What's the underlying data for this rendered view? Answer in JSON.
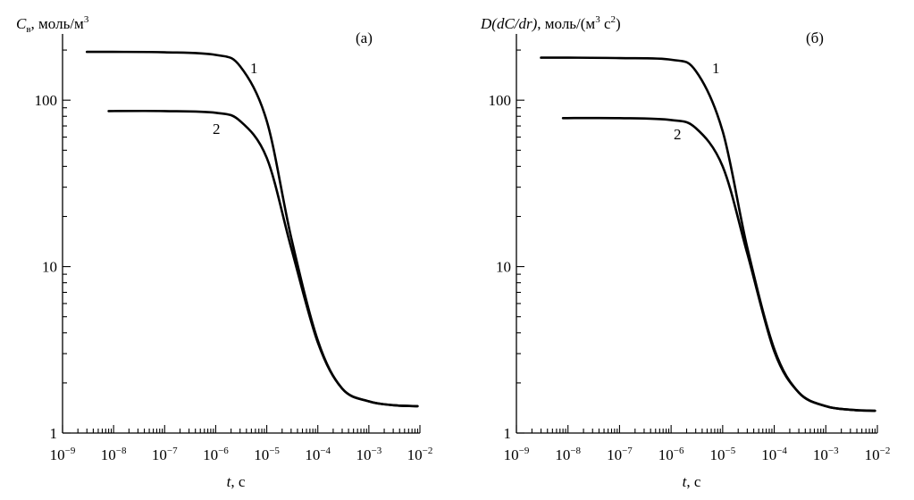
{
  "chart_data": [
    {
      "type": "line",
      "panel_label": "(а)",
      "ylabel_var": "C",
      "ylabel_sub": "в",
      "ylabel_units": ", моль/м",
      "ylabel_sup": "3",
      "xlabel_var": "t",
      "xlabel_units": ", с",
      "xscale": "log",
      "yscale": "log",
      "xlim": [
        1e-09,
        0.01
      ],
      "ylim": [
        1,
        250
      ],
      "x_tick_labels": [
        {
          "base": "10",
          "exp": "−9"
        },
        {
          "base": "10",
          "exp": "−8"
        },
        {
          "base": "10",
          "exp": "−7"
        },
        {
          "base": "10",
          "exp": "−6"
        },
        {
          "base": "10",
          "exp": "−5"
        },
        {
          "base": "10",
          "exp": "−4"
        },
        {
          "base": "10",
          "exp": "−3"
        },
        {
          "base": "10",
          "exp": "−2"
        }
      ],
      "y_tick_labels": [
        "1",
        "10",
        "100"
      ],
      "series": [
        {
          "name": "1",
          "x": [
            3e-09,
            1e-08,
            1e-07,
            1e-06,
            3e-06,
            1e-05,
            3e-05,
            0.0001,
            0.0003,
            0.001,
            0.003,
            0.009
          ],
          "y": [
            195,
            195,
            194,
            187,
            160,
            75,
            15,
            3.6,
            1.85,
            1.55,
            1.47,
            1.45
          ]
        },
        {
          "name": "2",
          "x": [
            8e-09,
            1e-07,
            1e-06,
            3e-06,
            1e-05,
            3e-05,
            0.0001,
            0.0003,
            0.001,
            0.003,
            0.009
          ],
          "y": [
            86,
            86,
            84,
            75,
            45,
            13,
            3.5,
            1.85,
            1.55,
            1.47,
            1.45
          ]
        }
      ]
    },
    {
      "type": "line",
      "panel_label": "(б)",
      "ylabel_var": "D(dC/dr)",
      "ylabel_units": ", моль/(м",
      "ylabel_sup": "3",
      "ylabel_units2": " с",
      "ylabel_sup2": "2",
      "ylabel_close": ")",
      "xlabel_var": "t",
      "xlabel_units": ", с",
      "xscale": "log",
      "yscale": "log",
      "xlim": [
        1e-09,
        0.01
      ],
      "ylim": [
        1,
        250
      ],
      "x_tick_labels": [
        {
          "base": "10",
          "exp": "−9"
        },
        {
          "base": "10",
          "exp": "−8"
        },
        {
          "base": "10",
          "exp": "−7"
        },
        {
          "base": "10",
          "exp": "−6"
        },
        {
          "base": "10",
          "exp": "−5"
        },
        {
          "base": "10",
          "exp": "−4"
        },
        {
          "base": "10",
          "exp": "−3"
        },
        {
          "base": "10",
          "exp": "−2"
        }
      ],
      "y_tick_labels": [
        "1",
        "10",
        "100"
      ],
      "series": [
        {
          "name": "1",
          "x": [
            3e-09,
            1e-08,
            1e-07,
            1e-06,
            3e-06,
            1e-05,
            3e-05,
            0.0001,
            0.0003,
            0.001,
            0.003,
            0.009
          ],
          "y": [
            180,
            180,
            179,
            175,
            150,
            65,
            13,
            3.2,
            1.75,
            1.45,
            1.38,
            1.36
          ]
        },
        {
          "name": "2",
          "x": [
            8e-09,
            1e-07,
            1e-06,
            3e-06,
            1e-05,
            3e-05,
            0.0001,
            0.0003,
            0.001,
            0.003,
            0.009
          ],
          "y": [
            78,
            78,
            76,
            68,
            40,
            12,
            3.1,
            1.75,
            1.45,
            1.38,
            1.36
          ]
        }
      ]
    }
  ]
}
